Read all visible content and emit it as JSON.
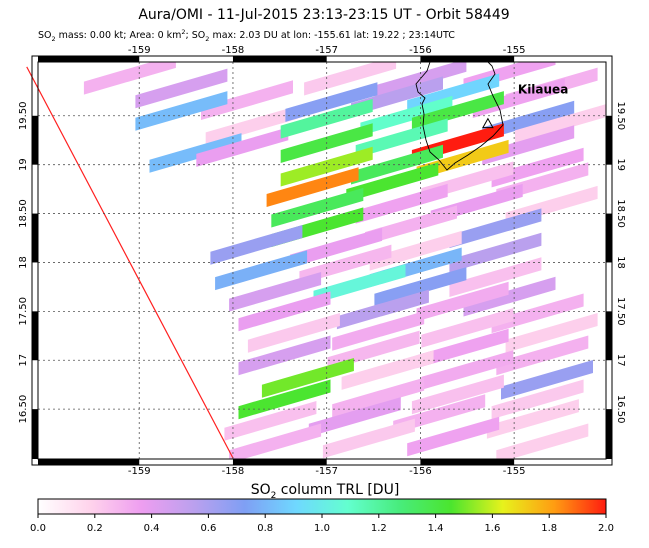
{
  "chart_data": {
    "type": "heatmap",
    "title": "Aura/OMI - 11-Jul-2015 23:13-23:15 UT - Orbit 58449",
    "subtitle": {
      "mass_label": "SO",
      "mass_text": " mass: 0.00 kt; Area: 0 km",
      "max_label": "; SO",
      "max_text": " max: 2.03 DU at lon: -155.61 lat: 19.22 ; 23:14UTC"
    },
    "x_ticks": [
      "-159",
      "-158",
      "-157",
      "-156",
      "-155"
    ],
    "x_tick_values": [
      -159,
      -158,
      -157,
      -156,
      -155
    ],
    "y_ticks": [
      "16.50",
      "17",
      "17.50",
      "18",
      "18.50",
      "19",
      "19.50"
    ],
    "y_tick_values": [
      16.5,
      17,
      17.5,
      18,
      18.5,
      19,
      19.5
    ],
    "xlim": [
      -160.08,
      -154.02
    ],
    "ylim": [
      15.99,
      20.05
    ],
    "grid": true,
    "volcano": {
      "name": "Kilauea",
      "lon": -155.28,
      "lat": 19.42
    },
    "swath_edge": [
      {
        "lon": -160.2,
        "lat": 20.0
      },
      {
        "lon": -158.0,
        "lat": 16.0
      }
    ],
    "colorbar": {
      "label_prefix": "SO",
      "label_suffix": " column TRL [DU]",
      "min": 0.0,
      "max": 2.0,
      "ticks": [
        "0.0",
        "0.2",
        "0.4",
        "0.6",
        "0.8",
        "1.0",
        "1.2",
        "1.4",
        "1.6",
        "1.8",
        "2.0"
      ],
      "stops": [
        "#ffffff",
        "#ffd4ec",
        "#ee9ef0",
        "#bca0ee",
        "#7f9ff4",
        "#6fd8ff",
        "#63ffcf",
        "#48ec7c",
        "#4be52e",
        "#e7f21c",
        "#ff9c12",
        "#ff1c10"
      ]
    },
    "pixels": [
      {
        "lon": -159.1,
        "lat": 19.92,
        "v": 0.3
      },
      {
        "lon": -158.55,
        "lat": 19.78,
        "v": 0.45
      },
      {
        "lon": -157.85,
        "lat": 19.66,
        "v": 0.3
      },
      {
        "lon": -156.75,
        "lat": 19.91,
        "v": 0.22
      },
      {
        "lon": -156.0,
        "lat": 19.88,
        "v": 0.45
      },
      {
        "lon": -155.05,
        "lat": 19.95,
        "v": 0.35
      },
      {
        "lon": -154.6,
        "lat": 19.79,
        "v": 0.3
      },
      {
        "lon": -158.55,
        "lat": 19.55,
        "v": 0.82
      },
      {
        "lon": -157.8,
        "lat": 19.4,
        "v": 0.2
      },
      {
        "lon": -156.95,
        "lat": 19.64,
        "v": 0.7
      },
      {
        "lon": -156.25,
        "lat": 19.7,
        "v": 0.55
      },
      {
        "lon": -155.65,
        "lat": 19.73,
        "v": 0.9
      },
      {
        "lon": -154.95,
        "lat": 19.68,
        "v": 0.35
      },
      {
        "lon": -158.4,
        "lat": 19.12,
        "v": 0.82
      },
      {
        "lon": -157.9,
        "lat": 19.18,
        "v": 0.38
      },
      {
        "lon": -157.0,
        "lat": 19.47,
        "v": 1.2
      },
      {
        "lon": -156.15,
        "lat": 19.5,
        "v": 1.1
      },
      {
        "lon": -155.6,
        "lat": 19.55,
        "v": 1.4
      },
      {
        "lon": -154.85,
        "lat": 19.45,
        "v": 0.7
      },
      {
        "lon": -154.5,
        "lat": 19.42,
        "v": 0.2
      },
      {
        "lon": -157.0,
        "lat": 19.22,
        "v": 1.4
      },
      {
        "lon": -156.2,
        "lat": 19.27,
        "v": 1.15
      },
      {
        "lon": -155.6,
        "lat": 19.22,
        "v": 2.03
      },
      {
        "lon": -154.85,
        "lat": 19.2,
        "v": 0.4
      },
      {
        "lon": -157.0,
        "lat": 18.98,
        "v": 1.55
      },
      {
        "lon": -156.25,
        "lat": 19.0,
        "v": 1.35
      },
      {
        "lon": -155.55,
        "lat": 19.05,
        "v": 1.72
      },
      {
        "lon": -154.75,
        "lat": 18.97,
        "v": 0.35
      },
      {
        "lon": -157.15,
        "lat": 18.77,
        "v": 1.85
      },
      {
        "lon": -156.3,
        "lat": 18.82,
        "v": 1.45
      },
      {
        "lon": -155.5,
        "lat": 18.83,
        "v": 0.25
      },
      {
        "lon": -154.7,
        "lat": 18.82,
        "v": 0.3
      },
      {
        "lon": -157.1,
        "lat": 18.56,
        "v": 1.35
      },
      {
        "lon": -156.2,
        "lat": 18.6,
        "v": 0.35
      },
      {
        "lon": -155.4,
        "lat": 18.6,
        "v": 0.38
      },
      {
        "lon": -154.6,
        "lat": 18.58,
        "v": 0.2
      },
      {
        "lon": -157.1,
        "lat": 18.36,
        "v": 1.45
      },
      {
        "lon": -156.1,
        "lat": 18.38,
        "v": 0.3
      },
      {
        "lon": -155.2,
        "lat": 18.35,
        "v": 0.65
      },
      {
        "lon": -157.75,
        "lat": 18.18,
        "v": 0.65
      },
      {
        "lon": -156.9,
        "lat": 18.15,
        "v": 0.38
      },
      {
        "lon": -156.05,
        "lat": 18.12,
        "v": 0.2
      },
      {
        "lon": -155.2,
        "lat": 18.1,
        "v": 0.55
      },
      {
        "lon": -157.7,
        "lat": 17.92,
        "v": 0.78
      },
      {
        "lon": -156.8,
        "lat": 17.98,
        "v": 0.28
      },
      {
        "lon": -156.05,
        "lat": 17.95,
        "v": 0.8
      },
      {
        "lon": -155.2,
        "lat": 17.85,
        "v": 0.25
      },
      {
        "lon": -157.55,
        "lat": 17.7,
        "v": 0.45
      },
      {
        "lon": -156.65,
        "lat": 17.78,
        "v": 1.05
      },
      {
        "lon": -156.0,
        "lat": 17.75,
        "v": 0.7
      },
      {
        "lon": -155.05,
        "lat": 17.65,
        "v": 0.45
      },
      {
        "lon": -157.45,
        "lat": 17.5,
        "v": 0.38
      },
      {
        "lon": -156.4,
        "lat": 17.52,
        "v": 0.55
      },
      {
        "lon": -155.55,
        "lat": 17.6,
        "v": 0.32
      },
      {
        "lon": -154.75,
        "lat": 17.48,
        "v": 0.3
      },
      {
        "lon": -157.35,
        "lat": 17.28,
        "v": 0.22
      },
      {
        "lon": -156.45,
        "lat": 17.3,
        "v": 0.32
      },
      {
        "lon": -155.5,
        "lat": 17.33,
        "v": 0.25
      },
      {
        "lon": -154.6,
        "lat": 17.28,
        "v": 0.2
      },
      {
        "lon": -157.45,
        "lat": 17.05,
        "v": 0.45
      },
      {
        "lon": -156.5,
        "lat": 17.1,
        "v": 0.28
      },
      {
        "lon": -155.55,
        "lat": 17.12,
        "v": 0.35
      },
      {
        "lon": -154.7,
        "lat": 17.05,
        "v": 0.3
      },
      {
        "lon": -157.2,
        "lat": 16.82,
        "v": 1.5
      },
      {
        "lon": -156.35,
        "lat": 16.9,
        "v": 0.2
      },
      {
        "lon": -155.5,
        "lat": 16.9,
        "v": 0.32
      },
      {
        "lon": -154.65,
        "lat": 16.8,
        "v": 0.65
      },
      {
        "lon": -157.45,
        "lat": 16.6,
        "v": 1.45
      },
      {
        "lon": -156.45,
        "lat": 16.62,
        "v": 0.3
      },
      {
        "lon": -155.6,
        "lat": 16.65,
        "v": 0.25
      },
      {
        "lon": -154.75,
        "lat": 16.6,
        "v": 0.22
      },
      {
        "lon": -157.6,
        "lat": 16.38,
        "v": 0.25
      },
      {
        "lon": -156.7,
        "lat": 16.42,
        "v": 0.4
      },
      {
        "lon": -155.8,
        "lat": 16.45,
        "v": 0.3
      },
      {
        "lon": -154.8,
        "lat": 16.4,
        "v": 0.2
      },
      {
        "lon": -157.55,
        "lat": 16.15,
        "v": 0.3
      },
      {
        "lon": -156.55,
        "lat": 16.2,
        "v": 0.22
      },
      {
        "lon": -155.65,
        "lat": 16.22,
        "v": 0.35
      },
      {
        "lon": -154.7,
        "lat": 16.15,
        "v": 0.2
      }
    ]
  }
}
